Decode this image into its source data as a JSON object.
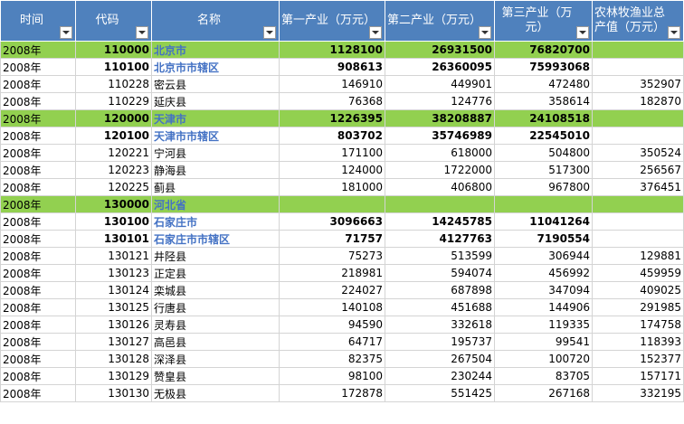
{
  "headers": {
    "time": "时间",
    "code": "代码",
    "name": "名称",
    "primary": "第一产业（万元）",
    "secondary": "第二产业（万元）",
    "tertiary": "第三产业（万元）",
    "agri": "农林牧渔业总产值（万元）"
  },
  "rows": [
    {
      "year": "2008年",
      "code": "110000",
      "name": "北京市",
      "p1": "1128100",
      "p2": "26931500",
      "p3": "76820700",
      "agri": "",
      "kind": "green"
    },
    {
      "year": "2008年",
      "code": "110100",
      "name": "北京市市辖区",
      "p1": "908613",
      "p2": "26360095",
      "p3": "75993068",
      "agri": "",
      "kind": "sub"
    },
    {
      "year": "2008年",
      "code": "110228",
      "name": "密云县",
      "p1": "146910",
      "p2": "449901",
      "p3": "472480",
      "agri": "352907",
      "kind": "plain"
    },
    {
      "year": "2008年",
      "code": "110229",
      "name": "延庆县",
      "p1": "76368",
      "p2": "124776",
      "p3": "358614",
      "agri": "182870",
      "kind": "plain"
    },
    {
      "year": "2008年",
      "code": "120000",
      "name": "天津市",
      "p1": "1226395",
      "p2": "38208887",
      "p3": "24108518",
      "agri": "",
      "kind": "green"
    },
    {
      "year": "2008年",
      "code": "120100",
      "name": "天津市市辖区",
      "p1": "803702",
      "p2": "35746989",
      "p3": "22545010",
      "agri": "",
      "kind": "sub"
    },
    {
      "year": "2008年",
      "code": "120221",
      "name": "宁河县",
      "p1": "171100",
      "p2": "618000",
      "p3": "504800",
      "agri": "350524",
      "kind": "plain"
    },
    {
      "year": "2008年",
      "code": "120223",
      "name": "静海县",
      "p1": "124000",
      "p2": "1722000",
      "p3": "517300",
      "agri": "256567",
      "kind": "plain"
    },
    {
      "year": "2008年",
      "code": "120225",
      "name": "蓟县",
      "p1": "181000",
      "p2": "406800",
      "p3": "967800",
      "agri": "376451",
      "kind": "plain"
    },
    {
      "year": "2008年",
      "code": "130000",
      "name": "河北省",
      "p1": "",
      "p2": "",
      "p3": "",
      "agri": "",
      "kind": "green"
    },
    {
      "year": "2008年",
      "code": "130100",
      "name": "石家庄市",
      "p1": "3096663",
      "p2": "14245785",
      "p3": "11041264",
      "agri": "",
      "kind": "sub"
    },
    {
      "year": "2008年",
      "code": "130101",
      "name": "石家庄市市辖区",
      "p1": "71757",
      "p2": "4127763",
      "p3": "7190554",
      "agri": "",
      "kind": "sub"
    },
    {
      "year": "2008年",
      "code": "130121",
      "name": "井陉县",
      "p1": "75273",
      "p2": "513599",
      "p3": "306944",
      "agri": "129881",
      "kind": "plain"
    },
    {
      "year": "2008年",
      "code": "130123",
      "name": "正定县",
      "p1": "218981",
      "p2": "594074",
      "p3": "456992",
      "agri": "459959",
      "kind": "plain"
    },
    {
      "year": "2008年",
      "code": "130124",
      "name": "栾城县",
      "p1": "224027",
      "p2": "687898",
      "p3": "347094",
      "agri": "409025",
      "kind": "plain"
    },
    {
      "year": "2008年",
      "code": "130125",
      "name": "行唐县",
      "p1": "140108",
      "p2": "451688",
      "p3": "144906",
      "agri": "291985",
      "kind": "plain"
    },
    {
      "year": "2008年",
      "code": "130126",
      "name": "灵寿县",
      "p1": "94590",
      "p2": "332618",
      "p3": "119335",
      "agri": "174758",
      "kind": "plain"
    },
    {
      "year": "2008年",
      "code": "130127",
      "name": "高邑县",
      "p1": "64717",
      "p2": "195737",
      "p3": "99541",
      "agri": "118393",
      "kind": "plain"
    },
    {
      "year": "2008年",
      "code": "130128",
      "name": "深泽县",
      "p1": "82375",
      "p2": "267504",
      "p3": "100720",
      "agri": "152377",
      "kind": "plain"
    },
    {
      "year": "2008年",
      "code": "130129",
      "name": "赞皇县",
      "p1": "98100",
      "p2": "230244",
      "p3": "83705",
      "agri": "157171",
      "kind": "plain"
    },
    {
      "year": "2008年",
      "code": "130130",
      "name": "无极县",
      "p1": "172878",
      "p2": "551425",
      "p3": "267168",
      "agri": "332195",
      "kind": "plain"
    }
  ],
  "icons": {
    "filter": "filter-dropdown-icon"
  },
  "colors": {
    "header_bg": "#4f81bd",
    "group_bg": "#92d050",
    "link": "#4472c4"
  }
}
